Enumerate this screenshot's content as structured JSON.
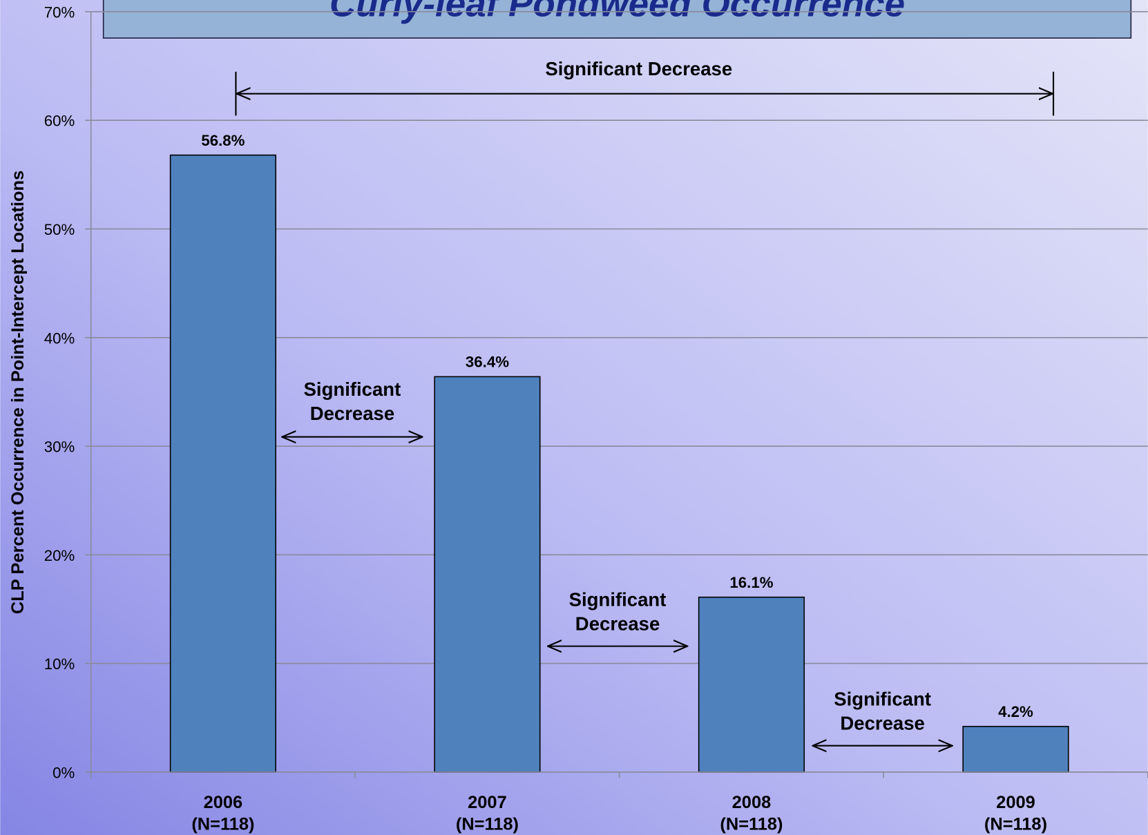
{
  "chart_data": {
    "type": "bar",
    "title": "Curly-leaf Pondweed Occurrence",
    "y_label": "CLP Percent Occurrence in Point-Intercept Locations",
    "categories": [
      "2006",
      "2007",
      "2008",
      "2009"
    ],
    "category_sublabels": [
      "(N=118)",
      "(N=118)",
      "(N=118)",
      "(N=118)"
    ],
    "values": [
      56.8,
      36.4,
      16.1,
      4.2
    ],
    "value_labels": [
      "56.8%",
      "36.4%",
      "16.1%",
      "4.2%"
    ],
    "color": "#4f81bd",
    "ylim": [
      0,
      70
    ],
    "yticks": [
      {
        "value": 0,
        "label": "0%"
      },
      {
        "value": 10,
        "label": "10%"
      },
      {
        "value": 20,
        "label": "20%"
      },
      {
        "value": 30,
        "label": "30%"
      },
      {
        "value": 40,
        "label": "40%"
      },
      {
        "value": 50,
        "label": "50%"
      },
      {
        "value": 60,
        "label": "60%"
      },
      {
        "value": 70,
        "label": "70%"
      }
    ],
    "grid": true,
    "annotations": [
      [
        "Significant Decrease"
      ],
      [
        "Significant",
        "Decrease"
      ],
      [
        "Significant",
        "Decrease"
      ],
      [
        "Significant",
        "Decrease"
      ]
    ]
  }
}
